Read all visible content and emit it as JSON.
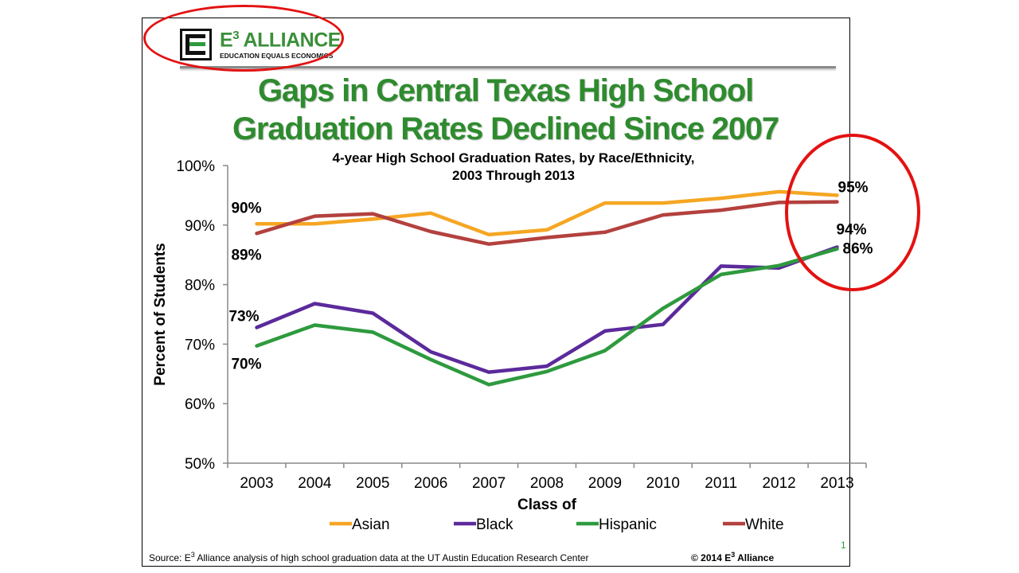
{
  "logo": {
    "name": "E",
    "superscript": "3",
    "name_suffix": " ALLIANCE",
    "tagline": "EDUCATION EQUALS ECONOMICS"
  },
  "headline": "Gaps in Central Texas High School Graduation Rates Declined Since 2007",
  "chart_data": {
    "type": "line",
    "title": "4-year High School Graduation Rates, by Race/Ethnicity,\n2003 Through 2013",
    "xlabel": "Class of",
    "ylabel": "Percent of Students",
    "x": [
      "2003",
      "2004",
      "2005",
      "2006",
      "2007",
      "2008",
      "2009",
      "2010",
      "2011",
      "2012",
      "2013"
    ],
    "ylim": [
      50,
      100
    ],
    "yticks": [
      "50%",
      "60%",
      "70%",
      "80%",
      "90%",
      "100%"
    ],
    "grid": false,
    "legend_position": "bottom",
    "series": [
      {
        "name": "Asian",
        "color": "#f5a623",
        "values": [
          90.2,
          90.2,
          91.0,
          92.0,
          88.4,
          89.2,
          93.7,
          93.7,
          94.5,
          95.6,
          95.0
        ]
      },
      {
        "name": "Black",
        "color": "#5b2a9b",
        "values": [
          72.8,
          76.8,
          75.2,
          68.7,
          65.3,
          66.3,
          72.2,
          73.3,
          83.1,
          82.8,
          86.3
        ]
      },
      {
        "name": "Hispanic",
        "color": "#2e9a3e",
        "values": [
          69.7,
          73.2,
          72.0,
          67.4,
          63.2,
          65.4,
          68.9,
          76.0,
          81.7,
          83.2,
          86.0
        ]
      },
      {
        "name": "White",
        "color": "#b3413e",
        "values": [
          88.6,
          91.5,
          91.9,
          88.9,
          86.8,
          87.9,
          88.8,
          91.7,
          92.5,
          93.8,
          93.9
        ]
      }
    ],
    "annotations": [
      {
        "text": "90%",
        "x": "2003",
        "series": "Asian"
      },
      {
        "text": "89%",
        "x": "2003",
        "series": "White"
      },
      {
        "text": "73%",
        "x": "2003",
        "series": "Black"
      },
      {
        "text": "70%",
        "x": "2003",
        "series": "Hispanic"
      },
      {
        "text": "95%",
        "x": "2013",
        "series": "Asian"
      },
      {
        "text": "94%",
        "x": "2013",
        "series": "White"
      },
      {
        "text": "86%",
        "x": "2013",
        "series": "Hispanic"
      }
    ]
  },
  "footer": {
    "source_prefix": "Source: E",
    "source_sup": "3",
    "source_suffix": " Alliance analysis of high school graduation data at the UT Austin Education Research Center",
    "copyright_prefix": "© 2014 E",
    "copyright_sup": "3",
    "copyright_suffix": " Alliance",
    "page_number": "1"
  }
}
